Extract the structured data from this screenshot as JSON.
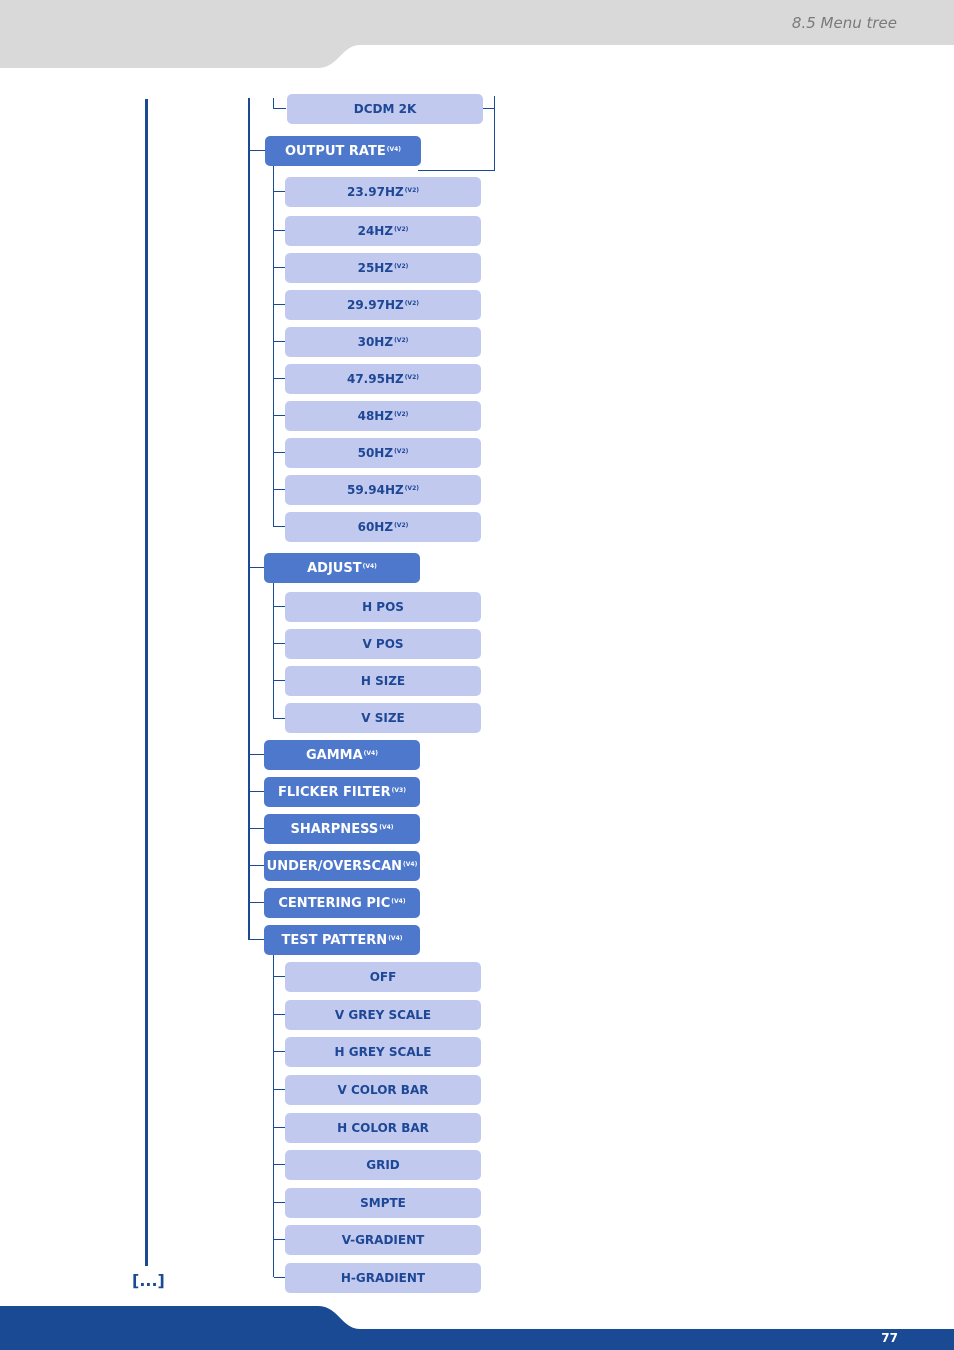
{
  "header": {
    "section_title": "8.5 Menu tree"
  },
  "footer": {
    "page_number": "77"
  },
  "continuation": "[...]",
  "tree": {
    "dcdm": "DCDM 2K",
    "output_rate": {
      "label": "OUTPUT RATE",
      "sup": "(V4)"
    },
    "rates": [
      {
        "label": "23.97HZ",
        "sup": "(V2)"
      },
      {
        "label": "24HZ",
        "sup": "(V2)"
      },
      {
        "label": "25HZ",
        "sup": "(V2)"
      },
      {
        "label": "29.97HZ",
        "sup": "(V2)"
      },
      {
        "label": "30HZ",
        "sup": "(V2)"
      },
      {
        "label": "47.95HZ",
        "sup": "(V2)"
      },
      {
        "label": "48HZ",
        "sup": "(V2)"
      },
      {
        "label": "50HZ",
        "sup": "(V2)"
      },
      {
        "label": "59.94HZ",
        "sup": "(V2)"
      },
      {
        "label": "60HZ",
        "sup": "(V2)"
      }
    ],
    "adjust": {
      "label": "ADJUST",
      "sup": "(V4)"
    },
    "adjust_items": [
      "H POS",
      "V POS",
      "H SIZE",
      "V SIZE"
    ],
    "gamma": {
      "label": "GAMMA",
      "sup": "(V4)"
    },
    "flicker_filter": {
      "label": "FLICKER FILTER",
      "sup": "(V3)"
    },
    "sharpness": {
      "label": "SHARPNESS",
      "sup": "(V4)"
    },
    "under_overscan": {
      "label": "UNDER/OVERSCAN",
      "sup": "(V4)"
    },
    "centering_pic": {
      "label": "CENTERING PIC",
      "sup": "(V4)"
    },
    "test_pattern": {
      "label": "TEST PATTERN",
      "sup": "(V4)"
    },
    "test_items": [
      "OFF",
      "V GREY SCALE",
      "H GREY SCALE",
      "V COLOR BAR",
      "H COLOR BAR",
      "GRID",
      "SMPTE",
      "V-GRADIENT",
      "H-GRADIENT"
    ]
  },
  "colors": {
    "navy": "#1a4a94",
    "main_box": "#4e78cc",
    "sub_box": "#c2c9ef",
    "sub_text": "#1e4796",
    "header_grey": "#d9d9d9"
  }
}
